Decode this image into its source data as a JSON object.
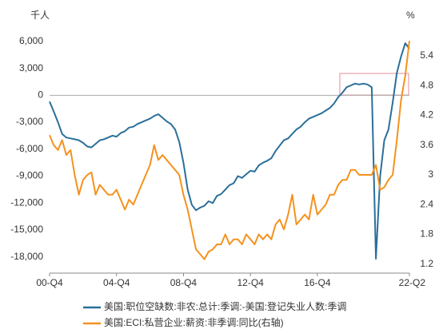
{
  "chart_data": {
    "type": "line",
    "y_unit": "千人",
    "y2_unit": "%",
    "categories": [
      "00-Q4",
      null,
      null,
      null,
      null,
      null,
      null,
      null,
      null,
      null,
      null,
      null,
      null,
      null,
      null,
      null,
      "04-Q4",
      null,
      null,
      null,
      null,
      null,
      null,
      null,
      null,
      null,
      null,
      null,
      null,
      null,
      null,
      null,
      "08-Q4",
      null,
      null,
      null,
      null,
      null,
      null,
      null,
      null,
      null,
      null,
      null,
      null,
      null,
      null,
      null,
      "12-Q4",
      null,
      null,
      null,
      null,
      null,
      null,
      null,
      null,
      null,
      null,
      null,
      null,
      null,
      null,
      null,
      "16-Q4",
      null,
      null,
      null,
      null,
      null,
      null,
      null,
      null,
      null,
      null,
      null,
      null,
      null,
      null,
      null,
      null,
      null,
      null,
      null,
      null,
      null,
      "22-Q2"
    ],
    "ylim": [
      -19800,
      7500
    ],
    "yticks": [
      {
        "value": 6000,
        "label": "6,000"
      },
      {
        "value": 3000,
        "label": "3,000"
      },
      0,
      {
        "value": -3000,
        "label": "-3,000"
      },
      {
        "value": -6000,
        "label": "-6,000"
      },
      {
        "value": -9000,
        "label": "-9,000"
      },
      {
        "value": -12000,
        "label": "-12,000"
      },
      {
        "value": -15000,
        "label": "-15,000"
      },
      {
        "value": -18000,
        "label": "-18,000"
      }
    ],
    "y2lim": [
      1.02,
      5.96
    ],
    "y2ticks": [
      5.4,
      4.8,
      4.2,
      3.6,
      3,
      2.4,
      1.8,
      1.2
    ],
    "series": [
      {
        "name": "美国:职位空缺数:非农:总计:季调:-美国:登记失业人数:季调",
        "color": "#2b6f99",
        "values": [
          -700,
          -1800,
          -3000,
          -4300,
          -4700,
          -4800,
          -4900,
          -5000,
          -5300,
          -5700,
          -5800,
          -5400,
          -5000,
          -4900,
          -4700,
          -4500,
          -4600,
          -4200,
          -4000,
          -3600,
          -3500,
          -3200,
          -3000,
          -2800,
          -2600,
          -2300,
          -2100,
          -2500,
          -2900,
          -3200,
          -3800,
          -5200,
          -7500,
          -10500,
          -12200,
          -12800,
          -12500,
          -12300,
          -11800,
          -12000,
          -11200,
          -11000,
          -10500,
          -10000,
          -9800,
          -9000,
          -9200,
          -8800,
          -8400,
          -8500,
          -7800,
          -7500,
          -7300,
          -7000,
          -6200,
          -5600,
          -5000,
          -4800,
          -4300,
          -3800,
          -3500,
          -3000,
          -2600,
          -2400,
          -2200,
          -2000,
          -1700,
          -1400,
          -900,
          -200,
          300,
          900,
          1100,
          1300,
          1200,
          1300,
          1200,
          900,
          -18200,
          -9000,
          -5000,
          -3800,
          -800,
          2500,
          4300,
          5800,
          5200
        ]
      },
      {
        "name": "美国:ECI:私营企业:薪资:非季调:同比(右轴)",
        "color": "#f5921e",
        "axis": "y2",
        "values": [
          3.8,
          3.6,
          3.5,
          3.7,
          3.4,
          3.5,
          3.0,
          2.6,
          2.9,
          3.0,
          3.05,
          2.6,
          2.8,
          2.7,
          2.6,
          2.6,
          2.7,
          2.5,
          2.3,
          2.5,
          2.4,
          2.6,
          2.8,
          3.0,
          3.2,
          3.6,
          3.3,
          3.4,
          3.3,
          3.2,
          3.1,
          3.0,
          2.6,
          2.3,
          1.9,
          1.5,
          1.4,
          1.3,
          1.45,
          1.5,
          1.6,
          1.6,
          1.8,
          1.6,
          1.7,
          1.7,
          1.6,
          1.8,
          1.7,
          1.6,
          1.8,
          1.7,
          1.8,
          1.7,
          2.0,
          2.1,
          1.9,
          2.2,
          2.6,
          2.0,
          2.1,
          2.2,
          2.1,
          2.6,
          2.2,
          2.3,
          2.4,
          2.6,
          2.6,
          2.8,
          2.9,
          2.9,
          3.1,
          3.1,
          3.0,
          3.0,
          3.0,
          3.0,
          3.2,
          2.7,
          2.75,
          2.9,
          3.0,
          3.7,
          4.5,
          5.0,
          5.7
        ]
      }
    ]
  }
}
